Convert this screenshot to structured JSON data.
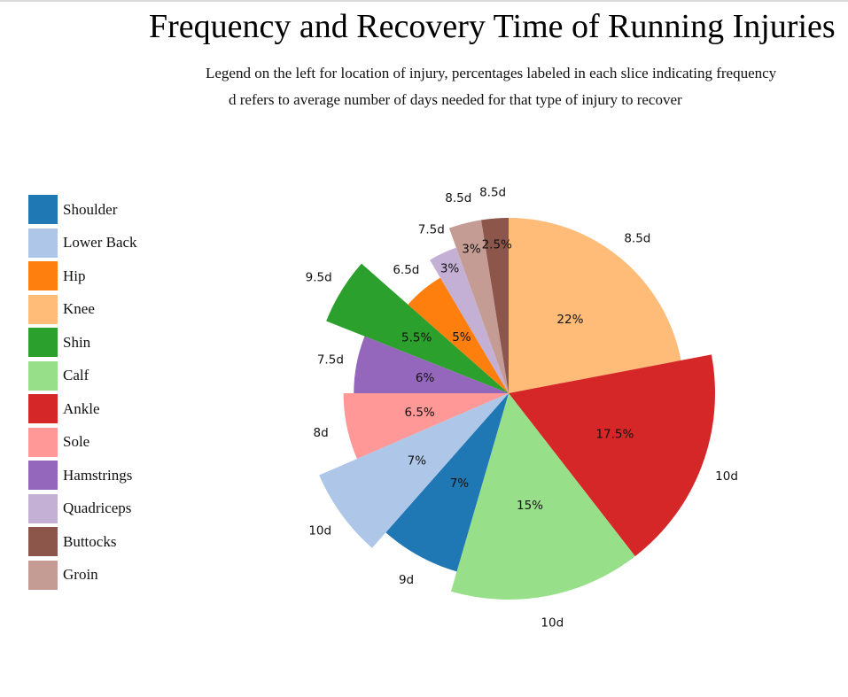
{
  "chart_data": {
    "type": "pie",
    "title": "Frequency and Recovery Time of Running Injuries",
    "subtitle": [
      "Legend on the left for location of injury, percentages labeled in each slice indicating frequency",
      "d refers to average number of days needed for that type of injury to recover"
    ],
    "legend_position": "left",
    "slices": [
      {
        "name": "Knee",
        "value": 22,
        "label": "22%",
        "days": 8.5,
        "days_label": "8.5d",
        "color": "#ffbb78"
      },
      {
        "name": "Ankle",
        "value": 17.5,
        "label": "17.5%",
        "days": 10,
        "days_label": "10d",
        "color": "#d62728"
      },
      {
        "name": "Calf",
        "value": 15,
        "label": "15%",
        "days": 10,
        "days_label": "10d",
        "color": "#98df8a"
      },
      {
        "name": "Shoulder",
        "value": 7,
        "label": "7%",
        "days": 9,
        "days_label": "9d",
        "color": "#1f77b4"
      },
      {
        "name": "Lower Back",
        "value": 7,
        "label": "7%",
        "days": 10,
        "days_label": "10d",
        "color": "#aec7e8"
      },
      {
        "name": "Sole",
        "value": 6.5,
        "label": "6.5%",
        "days": 8,
        "days_label": "8d",
        "color": "#ff9896"
      },
      {
        "name": "Hamstrings",
        "value": 6,
        "label": "6%",
        "days": 7.5,
        "days_label": "7.5d",
        "color": "#9467bd"
      },
      {
        "name": "Shin",
        "value": 5.5,
        "label": "5.5%",
        "days": 9.5,
        "days_label": "9.5d",
        "color": "#2ca02c"
      },
      {
        "name": "Hip",
        "value": 5,
        "label": "5%",
        "days": 6.5,
        "days_label": "6.5d",
        "color": "#ff7f0e"
      },
      {
        "name": "Quadriceps",
        "value": 3,
        "label": "3%",
        "days": 7.5,
        "days_label": "7.5d",
        "color": "#c5b0d5"
      },
      {
        "name": "Groin",
        "value": 3,
        "label": "3%",
        "days": 8.5,
        "days_label": "8.5d",
        "color": "#c49c94"
      },
      {
        "name": "Buttocks",
        "value": 2.5,
        "label": "2.5%",
        "days": 8.5,
        "days_label": "8.5d",
        "color": "#8c564b"
      }
    ],
    "legend": [
      {
        "name": "Shoulder",
        "color": "#1f77b4"
      },
      {
        "name": "Lower Back",
        "color": "#aec7e8"
      },
      {
        "name": "Hip",
        "color": "#ff7f0e"
      },
      {
        "name": "Knee",
        "color": "#ffbb78"
      },
      {
        "name": "Shin",
        "color": "#2ca02c"
      },
      {
        "name": "Calf",
        "color": "#98df8a"
      },
      {
        "name": "Ankle",
        "color": "#d62728"
      },
      {
        "name": "Sole",
        "color": "#ff9896"
      },
      {
        "name": "Hamstrings",
        "color": "#9467bd"
      },
      {
        "name": "Quadriceps",
        "color": "#c5b0d5"
      },
      {
        "name": "Buttocks",
        "color": "#8c564b"
      },
      {
        "name": "Groin",
        "color": "#c49c94"
      }
    ]
  }
}
